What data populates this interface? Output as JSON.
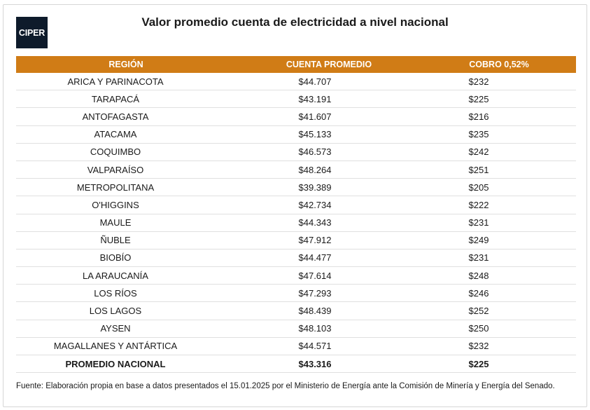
{
  "logo": {
    "text": "CIPER"
  },
  "title": "Valor promedio cuenta de electricidad a nivel nacional",
  "table": {
    "headers": [
      "REGIÓN",
      "CUENTA PROMEDIO",
      "COBRO 0,52%"
    ],
    "rows": [
      [
        "ARICA Y PARINACOTA",
        "$44.707",
        "$232"
      ],
      [
        "TARAPACÁ",
        "$43.191",
        "$225"
      ],
      [
        "ANTOFAGASTA",
        "$41.607",
        "$216"
      ],
      [
        "ATACAMA",
        "$45.133",
        "$235"
      ],
      [
        "COQUIMBO",
        "$46.573",
        "$242"
      ],
      [
        "VALPARAÍSO",
        "$48.264",
        "$251"
      ],
      [
        "METROPOLITANA",
        "$39.389",
        "$205"
      ],
      [
        "O'HIGGINS",
        "$42.734",
        "$222"
      ],
      [
        "MAULE",
        "$44.343",
        "$231"
      ],
      [
        "ÑUBLE",
        "$47.912",
        "$249"
      ],
      [
        "BIOBÍO",
        "$44.477",
        "$231"
      ],
      [
        "LA ARAUCANÍA",
        "$47.614",
        "$248"
      ],
      [
        "LOS RÍOS",
        "$47.293",
        "$246"
      ],
      [
        "LOS LAGOS",
        "$48.439",
        "$252"
      ],
      [
        "AYSEN",
        "$48.103",
        "$250"
      ],
      [
        "MAGALLANES Y ANTÁRTICA",
        "$44.571",
        "$232"
      ]
    ],
    "total": [
      "PROMEDIO NACIONAL",
      "$43.316",
      "$225"
    ]
  },
  "source": "Fuente: Elaboración propia en base a datos presentados el 15.01.2025 por el Ministerio de Energía ante la Comisión de Minería y Energía del Senado.",
  "colors": {
    "header_background": "#d07c16",
    "logo_background": "#0e1b2b"
  }
}
